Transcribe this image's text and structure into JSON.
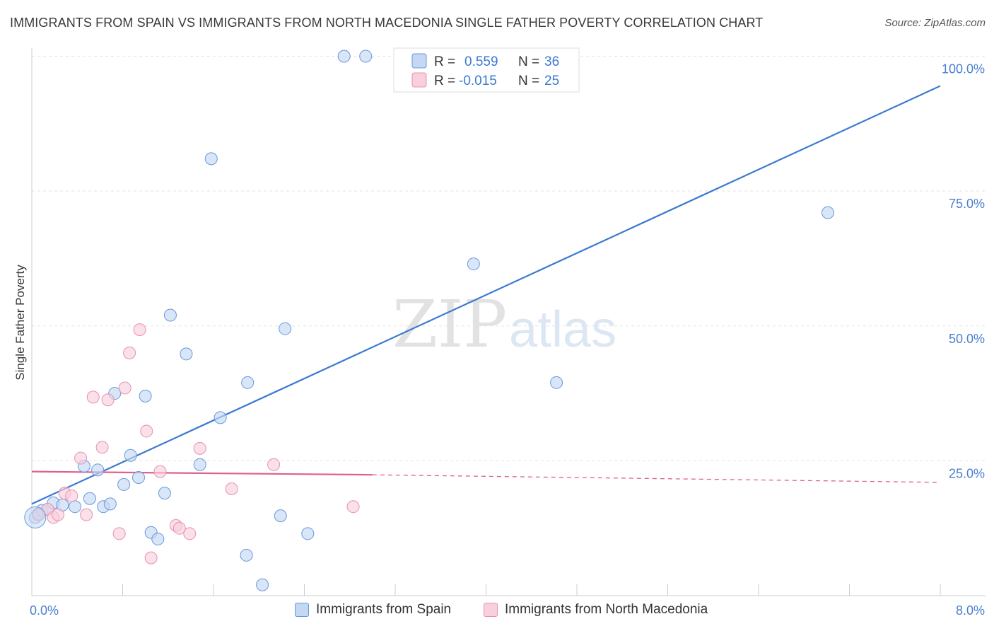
{
  "title": "IMMIGRANTS FROM SPAIN VS IMMIGRANTS FROM NORTH MACEDONIA SINGLE FATHER POVERTY CORRELATION CHART",
  "source": "Source: ZipAtlas.com",
  "watermark": {
    "zip": "ZIP",
    "atlas": "atlas"
  },
  "chart_data": {
    "type": "scatter",
    "title": "IMMIGRANTS FROM SPAIN VS IMMIGRANTS FROM NORTH MACEDONIA SINGLE FATHER POVERTY CORRELATION CHART",
    "xlabel": "",
    "ylabel": "Single Father Poverty",
    "xlim": [
      0,
      8
    ],
    "ylim": [
      0,
      100
    ],
    "x_tick_labels": {
      "min": "0.0%",
      "max": "8.0%"
    },
    "y_ticks": [
      {
        "value": 25,
        "label": "25.0%"
      },
      {
        "value": 50,
        "label": "50.0%"
      },
      {
        "value": 75,
        "label": "75.0%"
      },
      {
        "value": 100,
        "label": "100.0%"
      }
    ],
    "grid": true,
    "legend_position": "top-center",
    "series": [
      {
        "name": "Immigrants from Spain",
        "color": "#6699dd",
        "fill": "#c5d8f3",
        "line_color": "#3b79d0",
        "r": "0.559",
        "n": "36",
        "trend": {
          "x0": 0.0,
          "y0": 17.0,
          "x1": 8.0,
          "y1": 94.5
        },
        "points": [
          [
            0.03,
            14.5
          ],
          [
            0.06,
            15.2
          ],
          [
            0.09,
            15.8
          ],
          [
            0.14,
            16.0
          ],
          [
            0.19,
            17.2
          ],
          [
            0.27,
            16.8
          ],
          [
            0.38,
            16.5
          ],
          [
            0.46,
            24.0
          ],
          [
            0.51,
            18.0
          ],
          [
            0.58,
            23.3
          ],
          [
            0.63,
            16.5
          ],
          [
            0.69,
            17.0
          ],
          [
            0.73,
            37.5
          ],
          [
            0.81,
            20.6
          ],
          [
            0.87,
            26.0
          ],
          [
            0.94,
            21.9
          ],
          [
            1.0,
            37.0
          ],
          [
            1.05,
            11.7
          ],
          [
            1.11,
            10.5
          ],
          [
            1.17,
            19.0
          ],
          [
            1.22,
            52.0
          ],
          [
            1.36,
            44.8
          ],
          [
            1.48,
            24.3
          ],
          [
            1.58,
            81.0
          ],
          [
            1.66,
            33.0
          ],
          [
            1.89,
            7.5
          ],
          [
            1.9,
            39.5
          ],
          [
            2.03,
            2.0
          ],
          [
            2.19,
            14.8
          ],
          [
            2.23,
            49.5
          ],
          [
            2.43,
            11.5
          ],
          [
            2.75,
            100.0
          ],
          [
            2.94,
            100.0
          ],
          [
            3.89,
            61.5
          ],
          [
            4.62,
            39.5
          ],
          [
            7.01,
            71.0
          ]
        ]
      },
      {
        "name": "Immigrants from North Macedonia",
        "color": "#e890b0",
        "fill": "#f8cfdd",
        "line_color": "#e0608d",
        "r": "-0.015",
        "n": "25",
        "trend": {
          "x0": 0.0,
          "y0": 23.0,
          "x1": 3.0,
          "y1": 22.4,
          "x_dash_end": 8.0,
          "y_dash_end": 21.0
        },
        "points": [
          [
            0.06,
            15.0
          ],
          [
            0.14,
            16.0
          ],
          [
            0.19,
            14.5
          ],
          [
            0.23,
            15.0
          ],
          [
            0.29,
            19.0
          ],
          [
            0.35,
            18.5
          ],
          [
            0.43,
            25.5
          ],
          [
            0.48,
            15.0
          ],
          [
            0.54,
            36.8
          ],
          [
            0.62,
            27.5
          ],
          [
            0.67,
            36.3
          ],
          [
            0.77,
            11.5
          ],
          [
            0.82,
            38.5
          ],
          [
            0.86,
            45.0
          ],
          [
            0.95,
            49.3
          ],
          [
            1.01,
            30.5
          ],
          [
            1.05,
            7.0
          ],
          [
            1.13,
            23.0
          ],
          [
            1.27,
            13.0
          ],
          [
            1.3,
            12.5
          ],
          [
            1.39,
            11.5
          ],
          [
            1.48,
            27.3
          ],
          [
            1.76,
            19.8
          ],
          [
            2.13,
            24.3
          ],
          [
            2.83,
            16.5
          ]
        ]
      }
    ]
  },
  "legend_top": {
    "r_label": "R =",
    "n_label": "N ="
  }
}
